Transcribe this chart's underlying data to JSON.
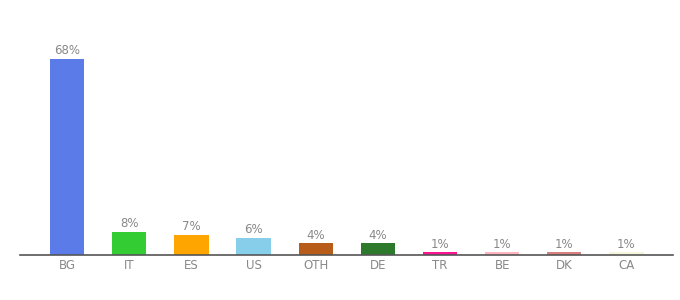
{
  "categories": [
    "BG",
    "IT",
    "ES",
    "US",
    "OTH",
    "DE",
    "TR",
    "BE",
    "DK",
    "CA"
  ],
  "values": [
    68,
    8,
    7,
    6,
    4,
    4,
    1,
    1,
    1,
    1
  ],
  "bar_colors": [
    "#5B7BE8",
    "#33CC33",
    "#FFA500",
    "#87CEEB",
    "#B85C1A",
    "#2D7A2D",
    "#FF1493",
    "#FFB6C1",
    "#D98080",
    "#F5F5DC"
  ],
  "label_color": "#888888",
  "tick_color": "#888888",
  "label_fontsize": 8.5,
  "tick_fontsize": 8.5,
  "ylim": [
    0,
    80
  ],
  "background_color": "#ffffff",
  "bar_width": 0.55
}
